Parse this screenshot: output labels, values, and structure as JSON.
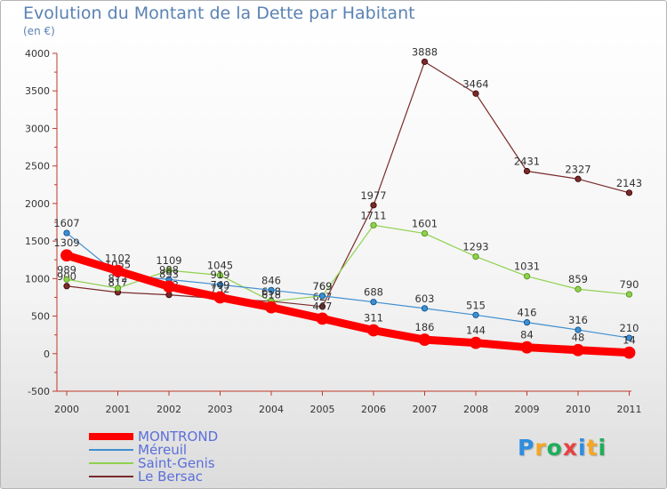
{
  "chart_data": {
    "type": "line",
    "title": "Evolution du Montant de la Dette par Habitant",
    "subtitle": "(en €)",
    "x": [
      "2000",
      "2001",
      "2002",
      "2003",
      "2004",
      "2005",
      "2006",
      "2007",
      "2008",
      "2009",
      "2010",
      "2011"
    ],
    "ylim": [
      -500,
      4000
    ],
    "yticks": [
      -500,
      0,
      500,
      1000,
      1500,
      2000,
      2500,
      3000,
      3500,
      4000
    ],
    "grid": false,
    "legend_position": "bottom-left",
    "series": [
      {
        "name": "Le Bersac",
        "color": "#7a2a2a",
        "values": [
          900,
          817,
          783,
          732,
          698,
          627,
          1977,
          3888,
          3464,
          2431,
          2327,
          2143
        ]
      },
      {
        "name": "Saint-Genis",
        "color": "#8fd14f",
        "values": [
          989,
          872,
          1109,
          1045,
          698,
          769,
          1711,
          1601,
          1293,
          1031,
          859,
          790
        ]
      },
      {
        "name": "Méreuil",
        "color": "#3f8fd0",
        "values": [
          1607,
          1055,
          988,
          919,
          846,
          769,
          688,
          603,
          515,
          416,
          316,
          210
        ]
      },
      {
        "name": "MONTROND",
        "color": "#ff0000",
        "values": [
          1309,
          1102,
          893,
          749,
          618,
          467,
          311,
          186,
          144,
          84,
          48,
          14
        ]
      }
    ]
  },
  "legend": {
    "items": [
      {
        "label": "MONTROND",
        "color": "#ff0000"
      },
      {
        "label": "Méreuil",
        "color": "#3f8fd0"
      },
      {
        "label": "Saint-Genis",
        "color": "#8fd14f"
      },
      {
        "label": "Le Bersac",
        "color": "#7a2a2a"
      }
    ]
  },
  "logo": {
    "letters": [
      "P",
      "r",
      "o",
      "x",
      "i",
      "t",
      "i"
    ],
    "colors": [
      "#2e8ee0",
      "#f5a623",
      "#1fae5b",
      "#e84141",
      "#2e8ee0",
      "#f5a623",
      "#1fae5b"
    ]
  }
}
